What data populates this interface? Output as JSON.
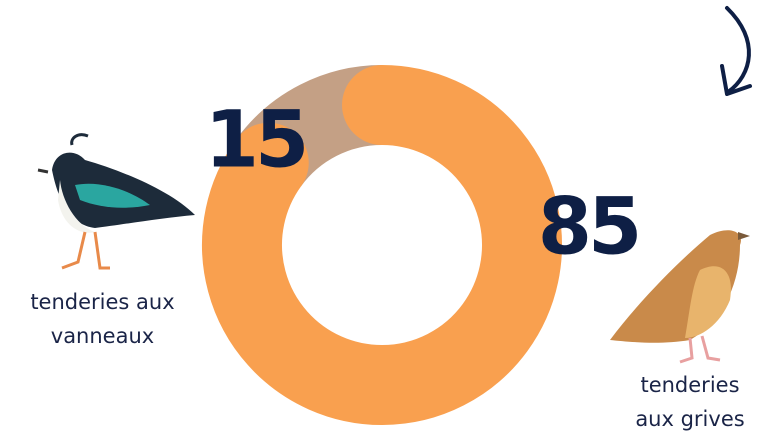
{
  "chart_data": {
    "type": "donut",
    "categories": [
      "tenderies aux vanneaux",
      "tenderies aux grives"
    ],
    "values": [
      15,
      85
    ],
    "colors": [
      "#c4a085",
      "#f9a04f"
    ]
  }
}
